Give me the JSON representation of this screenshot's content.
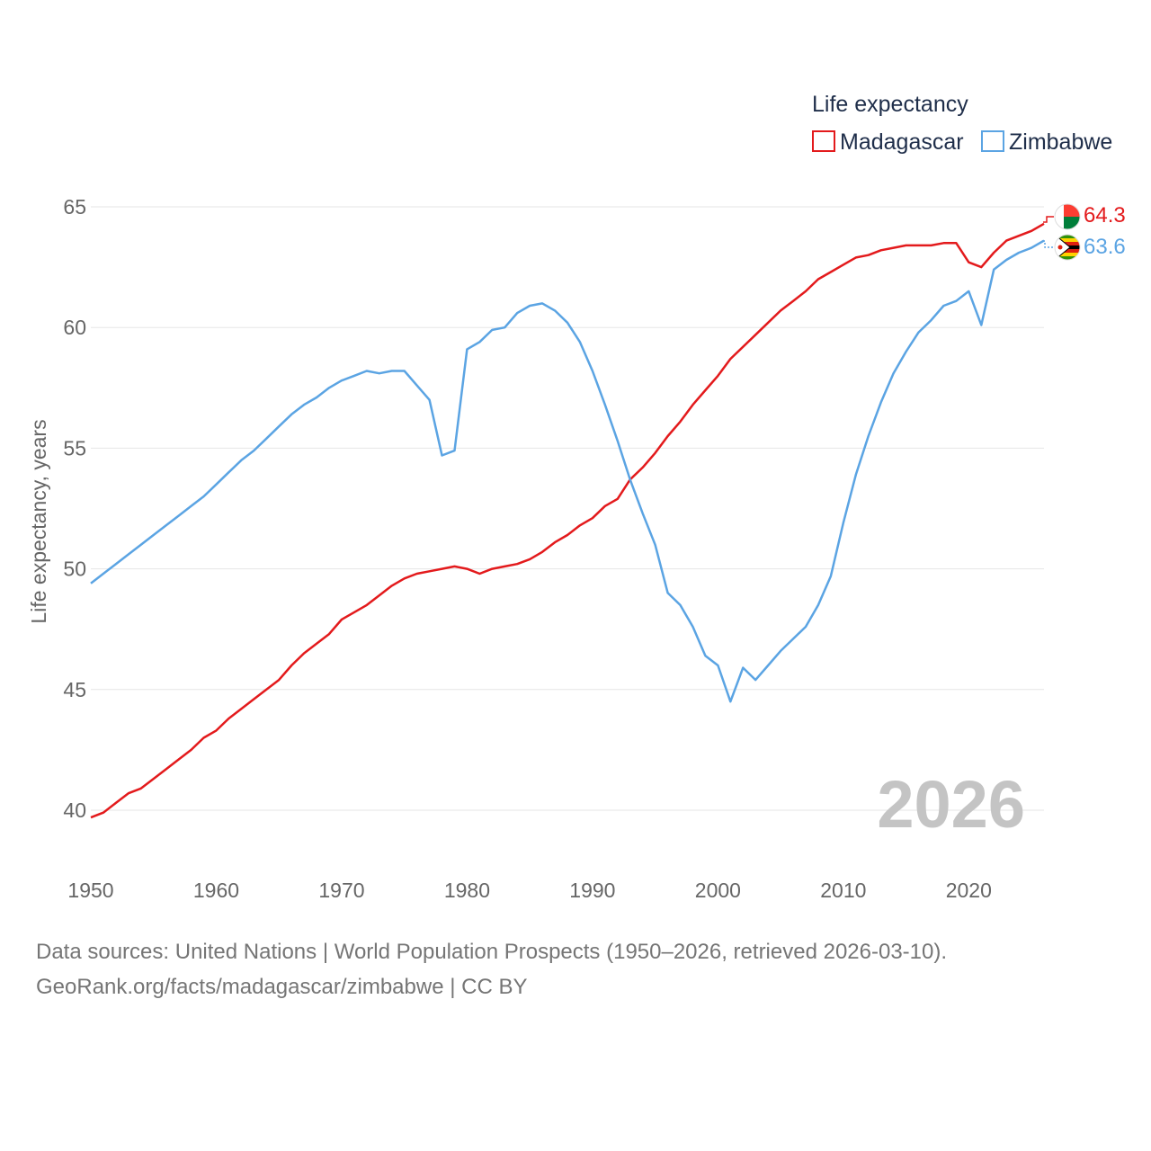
{
  "chart_data": {
    "type": "line",
    "title": "Life expectancy",
    "xlabel": "",
    "ylabel": "Life expectancy, years",
    "xlim": [
      1950,
      2026
    ],
    "ylim": [
      38.5,
      66
    ],
    "x_ticks": [
      1950,
      1960,
      1970,
      1980,
      1990,
      2000,
      2010,
      2020
    ],
    "y_ticks": [
      40,
      45,
      50,
      55,
      60,
      65
    ],
    "current_year": "2026",
    "x": [
      1950,
      1951,
      1952,
      1953,
      1954,
      1955,
      1956,
      1957,
      1958,
      1959,
      1960,
      1961,
      1962,
      1963,
      1964,
      1965,
      1966,
      1967,
      1968,
      1969,
      1970,
      1971,
      1972,
      1973,
      1974,
      1975,
      1976,
      1977,
      1978,
      1979,
      1980,
      1981,
      1982,
      1983,
      1984,
      1985,
      1986,
      1987,
      1988,
      1989,
      1990,
      1991,
      1992,
      1993,
      1994,
      1995,
      1996,
      1997,
      1998,
      1999,
      2000,
      2001,
      2002,
      2003,
      2004,
      2005,
      2006,
      2007,
      2008,
      2009,
      2010,
      2011,
      2012,
      2013,
      2014,
      2015,
      2016,
      2017,
      2018,
      2019,
      2020,
      2021,
      2022,
      2023,
      2024,
      2025,
      2026
    ],
    "series": [
      {
        "name": "Madagascar",
        "color": "#e31a1c",
        "end_label": "64.3",
        "flag": "madagascar-flag",
        "values": [
          39.7,
          39.9,
          40.3,
          40.7,
          40.9,
          41.3,
          41.7,
          42.1,
          42.5,
          43.0,
          43.3,
          43.8,
          44.2,
          44.6,
          45.0,
          45.4,
          46.0,
          46.5,
          46.9,
          47.3,
          47.9,
          48.2,
          48.5,
          48.9,
          49.3,
          49.6,
          49.8,
          49.9,
          50.0,
          50.1,
          50.0,
          49.8,
          50.0,
          50.1,
          50.2,
          50.4,
          50.7,
          51.1,
          51.4,
          51.8,
          52.1,
          52.6,
          52.9,
          53.7,
          54.2,
          54.8,
          55.5,
          56.1,
          56.8,
          57.4,
          58.0,
          58.7,
          59.2,
          59.7,
          60.2,
          60.7,
          61.1,
          61.5,
          62.0,
          62.3,
          62.6,
          62.9,
          63.0,
          63.2,
          63.3,
          63.4,
          63.4,
          63.4,
          63.5,
          63.5,
          62.7,
          62.5,
          63.1,
          63.6,
          63.8,
          64.0,
          64.3
        ]
      },
      {
        "name": "Zimbabwe",
        "color": "#5ba4e3",
        "end_label": "63.6",
        "flag": "zimbabwe-flag",
        "values": [
          49.4,
          49.8,
          50.2,
          50.6,
          51.0,
          51.4,
          51.8,
          52.2,
          52.6,
          53.0,
          53.5,
          54.0,
          54.5,
          54.9,
          55.4,
          55.9,
          56.4,
          56.8,
          57.1,
          57.5,
          57.8,
          58.0,
          58.2,
          58.1,
          58.2,
          58.2,
          57.6,
          57.0,
          54.7,
          54.9,
          59.1,
          59.4,
          59.9,
          60.0,
          60.6,
          60.9,
          61.0,
          60.7,
          60.2,
          59.4,
          58.2,
          56.8,
          55.3,
          53.7,
          52.3,
          51.0,
          49.0,
          48.5,
          47.6,
          46.4,
          46.0,
          44.5,
          45.9,
          45.4,
          46.0,
          46.6,
          47.1,
          47.6,
          48.5,
          49.7,
          51.9,
          53.9,
          55.5,
          56.9,
          58.1,
          59.0,
          59.8,
          60.3,
          60.9,
          61.1,
          61.5,
          60.1,
          62.4,
          62.8,
          63.1,
          63.3,
          63.6
        ]
      }
    ]
  },
  "footer": {
    "sources": "Data sources: United Nations | World Population Prospects (1950–2026, retrieved 2026-03-10).",
    "credit": "GeoRank.org/facts/madagascar/zimbabwe | CC BY"
  }
}
